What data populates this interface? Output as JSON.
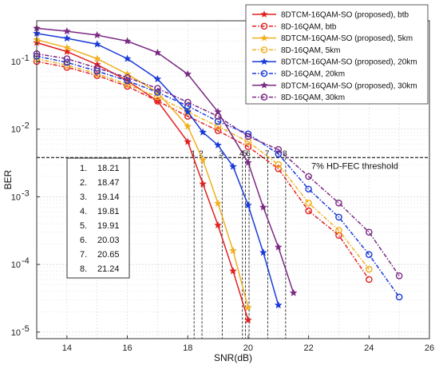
{
  "chart_data": {
    "type": "line",
    "xlabel": "SNR(dB)",
    "ylabel": "BER",
    "xlim": [
      13,
      26
    ],
    "ylim": [
      8e-06,
      0.4
    ],
    "yscale": "log",
    "grid": true,
    "x_ticks": [
      14,
      16,
      18,
      20,
      22,
      24,
      26
    ],
    "y_ticks": [
      {
        "value": 0.1,
        "base": "10",
        "exp": "-1"
      },
      {
        "value": 0.01,
        "base": "10",
        "exp": "-2"
      },
      {
        "value": 0.001,
        "base": "10",
        "exp": "-3"
      },
      {
        "value": 0.0001,
        "base": "10",
        "exp": "-4"
      },
      {
        "value": 1e-05,
        "base": "10",
        "exp": "-5"
      }
    ],
    "legend_position": "top-right",
    "series": [
      {
        "name": "8DTCM-16QAM-SO (proposed), btb",
        "color": "#e02020",
        "marker": "star",
        "dashed": false,
        "x": [
          13,
          14,
          15,
          16,
          17,
          18,
          18.5,
          19,
          19.5,
          20
        ],
        "y": [
          0.19,
          0.14,
          0.09,
          0.052,
          0.026,
          0.0065,
          0.00155,
          0.00038,
          8e-05,
          1.5e-05
        ]
      },
      {
        "name": "8D-16QAM, btb",
        "color": "#e02020",
        "marker": "circle",
        "dashed": true,
        "x": [
          13,
          14,
          15,
          16,
          17,
          18,
          19,
          20,
          21,
          22,
          23,
          24
        ],
        "y": [
          0.1,
          0.082,
          0.062,
          0.043,
          0.026,
          0.0155,
          0.0095,
          0.0055,
          0.0026,
          0.00062,
          0.00027,
          6e-05
        ]
      },
      {
        "name": "8DTCM-16QAM-SO (proposed), 5km",
        "color": "#f0b020",
        "marker": "star",
        "dashed": false,
        "x": [
          13,
          14,
          15,
          16,
          17,
          18,
          18.5,
          19,
          19.5,
          20
        ],
        "y": [
          0.21,
          0.16,
          0.11,
          0.065,
          0.035,
          0.011,
          0.0035,
          0.0008,
          0.00016,
          2.3e-05
        ]
      },
      {
        "name": "8D-16QAM, 5km",
        "color": "#f0b020",
        "marker": "circle",
        "dashed": true,
        "x": [
          13,
          14,
          15,
          16,
          17,
          18,
          19,
          20,
          21,
          22,
          23,
          24
        ],
        "y": [
          0.11,
          0.088,
          0.066,
          0.046,
          0.03,
          0.018,
          0.011,
          0.0065,
          0.003,
          0.00081,
          0.00032,
          8.5e-05
        ]
      },
      {
        "name": "8DTCM-16QAM-SO (proposed), 20km",
        "color": "#1a3ad8",
        "marker": "star",
        "dashed": false,
        "x": [
          13,
          14,
          15,
          16,
          17,
          18,
          18.5,
          19,
          19.5,
          20,
          20.5,
          21
        ],
        "y": [
          0.26,
          0.22,
          0.18,
          0.11,
          0.055,
          0.018,
          0.009,
          0.0058,
          0.0028,
          0.00075,
          0.00015,
          2.5e-05
        ]
      },
      {
        "name": "8D-16QAM, 20km",
        "color": "#1a3ad8",
        "marker": "circle",
        "dashed": true,
        "x": [
          13,
          14,
          15,
          16,
          17,
          18,
          19,
          20,
          21,
          22,
          23,
          24,
          25
        ],
        "y": [
          0.12,
          0.097,
          0.072,
          0.052,
          0.035,
          0.022,
          0.013,
          0.0085,
          0.0043,
          0.0013,
          0.0005,
          0.00014,
          3.3e-05
        ]
      },
      {
        "name": "8DTCM-16QAM-SO (proposed), 30km",
        "color": "#7a2a82",
        "marker": "star",
        "dashed": false,
        "x": [
          13,
          14,
          15,
          16,
          17,
          18,
          19,
          20,
          20.5,
          21,
          21.5
        ],
        "y": [
          0.31,
          0.28,
          0.245,
          0.2,
          0.135,
          0.065,
          0.018,
          0.0032,
          0.0007,
          0.00018,
          3.8e-05
        ]
      },
      {
        "name": "8D-16QAM, 30km",
        "color": "#7a2a82",
        "marker": "circle",
        "dashed": true,
        "x": [
          13,
          14,
          15,
          16,
          17,
          18,
          19,
          20,
          21,
          22,
          23,
          24,
          25
        ],
        "y": [
          0.13,
          0.11,
          0.08,
          0.058,
          0.04,
          0.025,
          0.0155,
          0.0078,
          0.005,
          0.002,
          0.00081,
          0.0003,
          6.8e-05
        ]
      }
    ],
    "threshold": {
      "label": "7% HD-FEC threshold",
      "y": 0.0038
    },
    "threshold_points": [
      {
        "label": "1",
        "x": 18.21
      },
      {
        "label": "2",
        "x": 18.47
      },
      {
        "label": "3",
        "x": 19.14
      },
      {
        "label": "4",
        "x": 19.81
      },
      {
        "label": "5",
        "x": 19.91
      },
      {
        "label": "6",
        "x": 20.03
      },
      {
        "label": "7",
        "x": 20.65
      },
      {
        "label": "8",
        "x": 21.24
      }
    ],
    "value_table": [
      {
        "index": "1.",
        "value": "18.21"
      },
      {
        "index": "2.",
        "value": "18.47"
      },
      {
        "index": "3.",
        "value": "19.14"
      },
      {
        "index": "4.",
        "value": "19.81"
      },
      {
        "index": "5.",
        "value": "19.91"
      },
      {
        "index": "6.",
        "value": "20.03"
      },
      {
        "index": "7.",
        "value": "20.65"
      },
      {
        "index": "8.",
        "value": "21.24"
      }
    ]
  }
}
